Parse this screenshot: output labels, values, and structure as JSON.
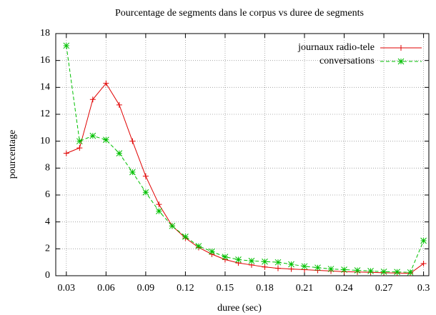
{
  "chart_data": {
    "type": "line",
    "title": "Pourcentage de segments dans le corpus vs duree de segments",
    "x_label": "duree (sec)",
    "y_label": "pourcentage",
    "x": [
      0.03,
      0.04,
      0.05,
      0.06,
      0.07,
      0.08,
      0.09,
      0.1,
      0.11,
      0.12,
      0.13,
      0.14,
      0.15,
      0.16,
      0.17,
      0.18,
      0.19,
      0.2,
      0.21,
      0.22,
      0.23,
      0.24,
      0.25,
      0.26,
      0.27,
      0.28,
      0.29,
      0.3
    ],
    "series": [
      {
        "name": "journaux radio-tele",
        "color": "#e00000",
        "dash": false,
        "marker": "plus",
        "values": [
          9.1,
          9.5,
          13.1,
          14.3,
          12.7,
          10.0,
          7.4,
          5.3,
          3.7,
          2.8,
          2.1,
          1.6,
          1.2,
          0.95,
          0.8,
          0.65,
          0.55,
          0.5,
          0.45,
          0.4,
          0.35,
          0.3,
          0.28,
          0.25,
          0.22,
          0.2,
          0.18,
          0.9
        ]
      },
      {
        "name": "conversations",
        "color": "#00c000",
        "dash": true,
        "marker": "star",
        "values": [
          17.1,
          10.0,
          10.4,
          10.1,
          9.1,
          7.7,
          6.2,
          4.8,
          3.7,
          2.9,
          2.2,
          1.8,
          1.4,
          1.2,
          1.1,
          1.05,
          1.0,
          0.85,
          0.7,
          0.6,
          0.5,
          0.45,
          0.4,
          0.35,
          0.3,
          0.28,
          0.25,
          2.6
        ]
      }
    ],
    "xlim": [
      0.022,
      0.304
    ],
    "ylim": [
      0,
      18
    ],
    "xticks": [
      0.03,
      0.06,
      0.09,
      0.12,
      0.15,
      0.18,
      0.21,
      0.24,
      0.27,
      0.3
    ],
    "yticks": [
      0,
      2,
      4,
      6,
      8,
      10,
      12,
      14,
      16,
      18
    ],
    "grid": true,
    "legend": "top-right"
  }
}
